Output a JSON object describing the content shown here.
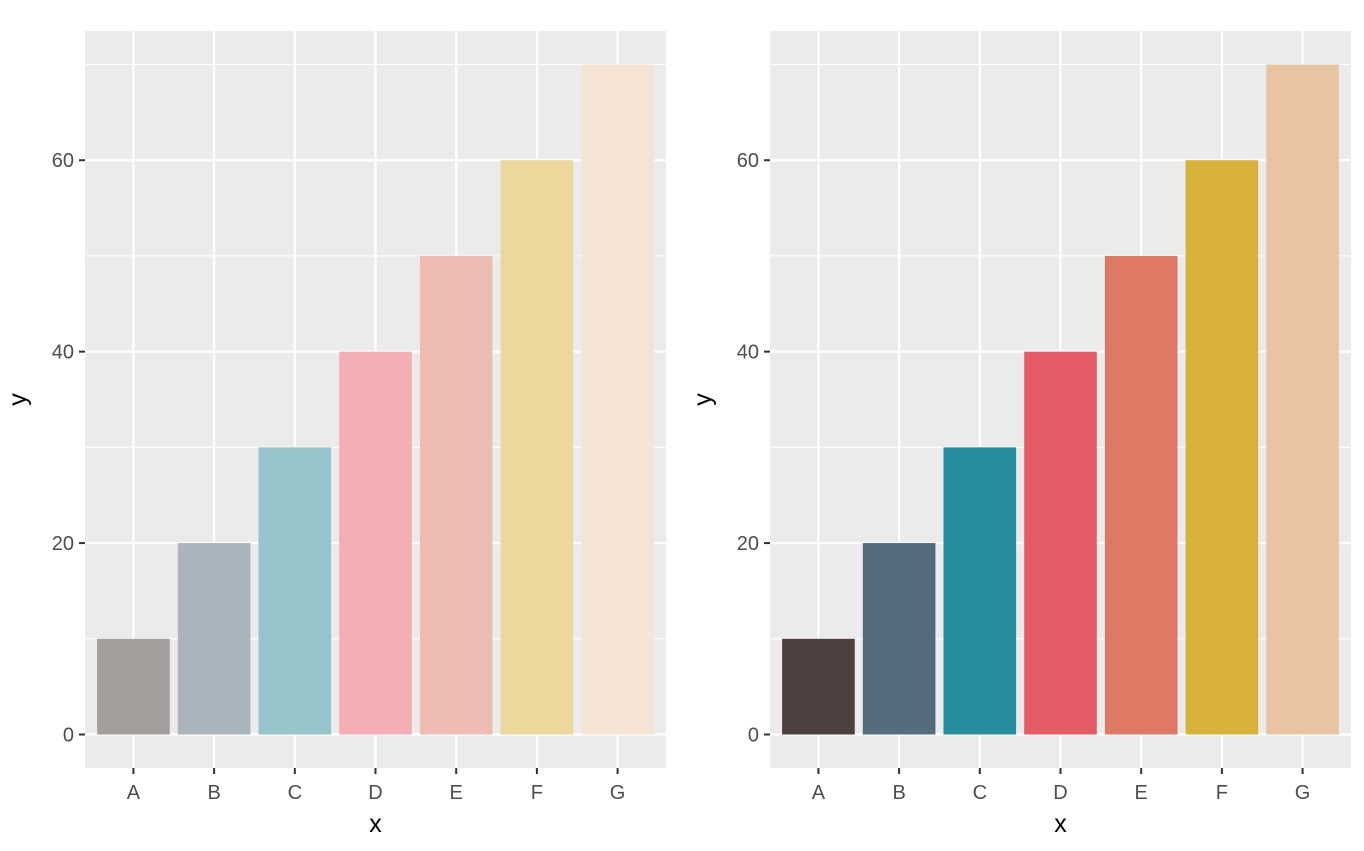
{
  "chart_data": [
    {
      "type": "bar",
      "title": "",
      "xlabel": "x",
      "ylabel": "y",
      "categories": [
        "A",
        "B",
        "C",
        "D",
        "E",
        "F",
        "G"
      ],
      "values": [
        10,
        20,
        30,
        40,
        50,
        60,
        70
      ],
      "colors": [
        "#A49E9C",
        "#AAB4BD",
        "#96C5CC",
        "#F4AEB3",
        "#EEBCB3",
        "#ECD89C",
        "#F5E3D4"
      ],
      "ylim": [
        -3.5,
        73.5
      ],
      "yticks": [
        0,
        20,
        40,
        60
      ],
      "ytick_labels": [
        "0",
        "20",
        "40",
        "60"
      ],
      "grid": true,
      "legend": "none",
      "panel_background": "#EBEBEB"
    },
    {
      "type": "bar",
      "title": "",
      "xlabel": "x",
      "ylabel": "y",
      "categories": [
        "A",
        "B",
        "C",
        "D",
        "E",
        "F",
        "G"
      ],
      "values": [
        10,
        20,
        30,
        40,
        50,
        60,
        70
      ],
      "colors": [
        "#4D4041",
        "#566B7B",
        "#258D9C",
        "#E35B64",
        "#DF7865",
        "#D8B13B",
        "#E9C4A3"
      ],
      "ylim": [
        -3.5,
        73.5
      ],
      "yticks": [
        0,
        20,
        40,
        60
      ],
      "ytick_labels": [
        "0",
        "20",
        "40",
        "60"
      ],
      "grid": true,
      "legend": "none",
      "panel_background": "#EBEBEB"
    }
  ]
}
